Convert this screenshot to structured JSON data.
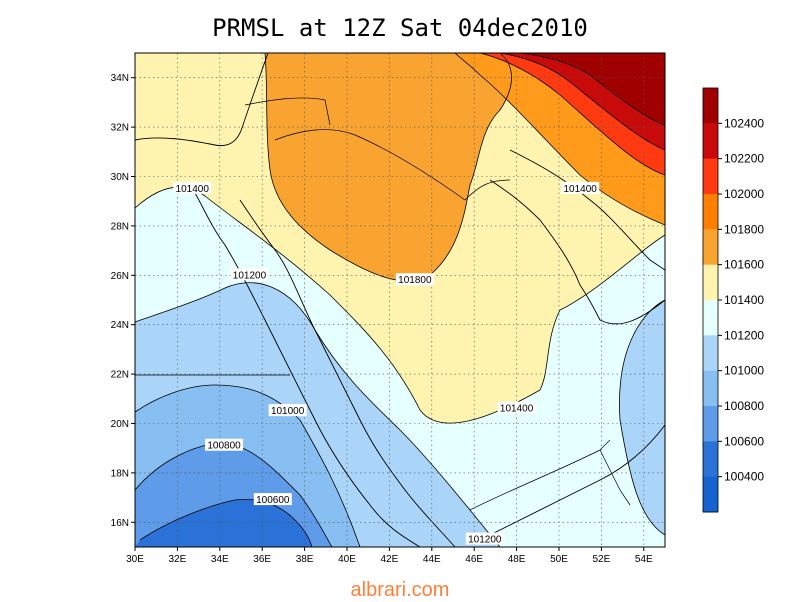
{
  "title": "PRMSL at 12Z Sat 04dec2010",
  "credit": "albrari.com",
  "axes": {
    "lon_ticks": [
      "30E",
      "32E",
      "34E",
      "36E",
      "38E",
      "40E",
      "42E",
      "44E",
      "46E",
      "48E",
      "50E",
      "52E",
      "54E"
    ],
    "lat_ticks": [
      "34N",
      "32N",
      "30N",
      "28N",
      "26N",
      "24N",
      "22N",
      "20N",
      "18N",
      "16N"
    ]
  },
  "contour_labels": [
    {
      "text": "101400",
      "lon": 32.7,
      "lat": 29.5
    },
    {
      "text": "101200",
      "lon": 35.4,
      "lat": 26.0
    },
    {
      "text": "101800",
      "lon": 43.2,
      "lat": 25.8
    },
    {
      "text": "101400",
      "lon": 51.0,
      "lat": 29.5
    },
    {
      "text": "101000",
      "lon": 37.2,
      "lat": 20.5
    },
    {
      "text": "100800",
      "lon": 34.2,
      "lat": 19.1
    },
    {
      "text": "100600",
      "lon": 36.5,
      "lat": 16.9
    },
    {
      "text": "101400",
      "lon": 48.0,
      "lat": 20.6
    },
    {
      "text": "101200",
      "lon": 46.5,
      "lat": 15.3
    }
  ],
  "legend": {
    "labels": [
      "102400",
      "102200",
      "102000",
      "101800",
      "101600",
      "101400",
      "101200",
      "101000",
      "100800",
      "100600",
      "100400"
    ],
    "colors": [
      "#a00000",
      "#c80a0a",
      "#ff3a10",
      "#ff7f00",
      "#f9a430",
      "#fff3b0",
      "#e6ffff",
      "#aad4f8",
      "#87bff2",
      "#5e9be8",
      "#2a72d8",
      "#1463d0"
    ]
  }
}
